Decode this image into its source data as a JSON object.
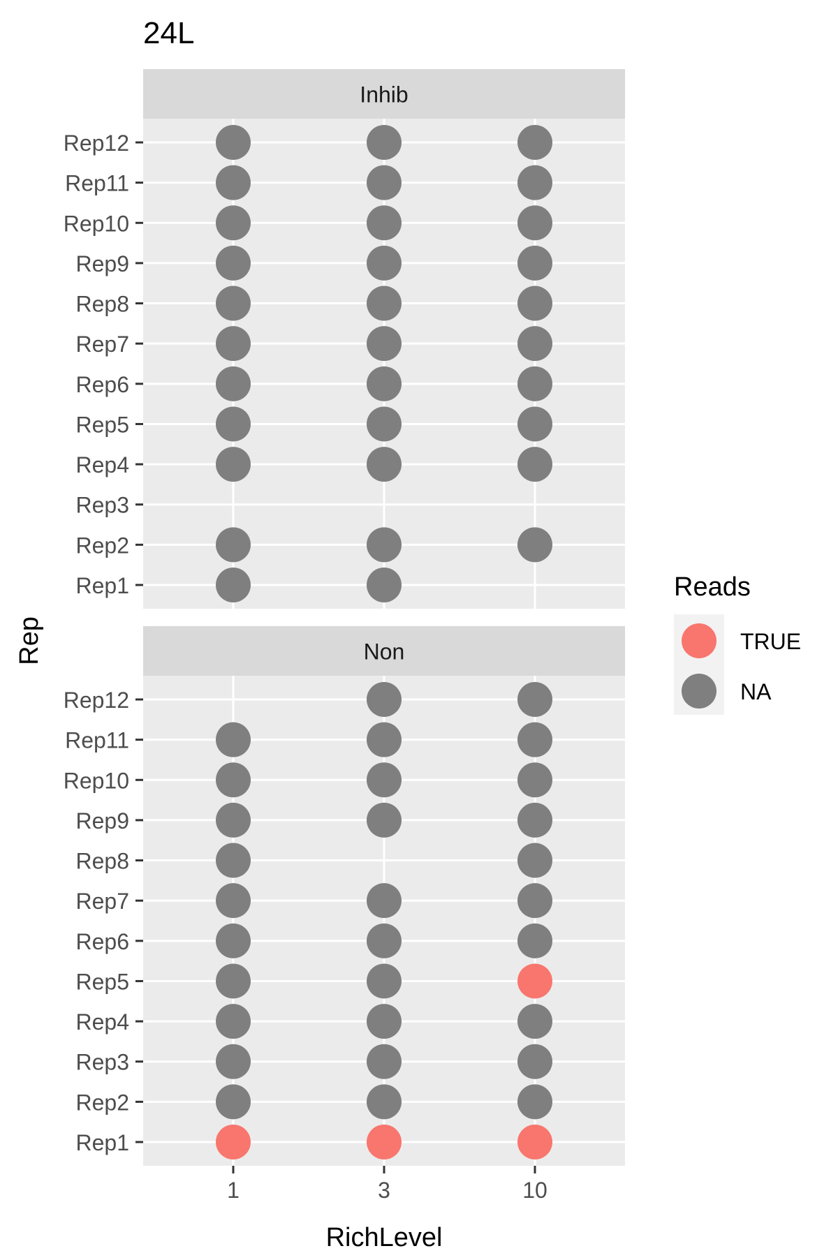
{
  "chart_data": {
    "type": "scatter",
    "title": "24L",
    "xlabel": "RichLevel",
    "ylabel": "Rep",
    "x_categories": [
      "1",
      "3",
      "10"
    ],
    "y_categories": [
      "Rep1",
      "Rep2",
      "Rep3",
      "Rep4",
      "Rep5",
      "Rep6",
      "Rep7",
      "Rep8",
      "Rep9",
      "Rep10",
      "Rep11",
      "Rep12"
    ],
    "grid": true,
    "legend": {
      "title": "Reads",
      "position": "right",
      "entries": [
        {
          "label": "TRUE",
          "color": "#F8766D"
        },
        {
          "label": "NA",
          "color": "#7F7F7F"
        }
      ]
    },
    "colors": {
      "TRUE": "#F8766D",
      "NA": "#7F7F7F"
    },
    "facets": [
      {
        "name": "Inhib",
        "points": [
          {
            "x": "1",
            "y": "Rep12",
            "reads": "NA"
          },
          {
            "x": "3",
            "y": "Rep12",
            "reads": "NA"
          },
          {
            "x": "10",
            "y": "Rep12",
            "reads": "NA"
          },
          {
            "x": "1",
            "y": "Rep11",
            "reads": "NA"
          },
          {
            "x": "3",
            "y": "Rep11",
            "reads": "NA"
          },
          {
            "x": "10",
            "y": "Rep11",
            "reads": "NA"
          },
          {
            "x": "1",
            "y": "Rep10",
            "reads": "NA"
          },
          {
            "x": "3",
            "y": "Rep10",
            "reads": "NA"
          },
          {
            "x": "10",
            "y": "Rep10",
            "reads": "NA"
          },
          {
            "x": "1",
            "y": "Rep9",
            "reads": "NA"
          },
          {
            "x": "3",
            "y": "Rep9",
            "reads": "NA"
          },
          {
            "x": "10",
            "y": "Rep9",
            "reads": "NA"
          },
          {
            "x": "1",
            "y": "Rep8",
            "reads": "NA"
          },
          {
            "x": "3",
            "y": "Rep8",
            "reads": "NA"
          },
          {
            "x": "10",
            "y": "Rep8",
            "reads": "NA"
          },
          {
            "x": "1",
            "y": "Rep7",
            "reads": "NA"
          },
          {
            "x": "3",
            "y": "Rep7",
            "reads": "NA"
          },
          {
            "x": "10",
            "y": "Rep7",
            "reads": "NA"
          },
          {
            "x": "1",
            "y": "Rep6",
            "reads": "NA"
          },
          {
            "x": "3",
            "y": "Rep6",
            "reads": "NA"
          },
          {
            "x": "10",
            "y": "Rep6",
            "reads": "NA"
          },
          {
            "x": "1",
            "y": "Rep5",
            "reads": "NA"
          },
          {
            "x": "3",
            "y": "Rep5",
            "reads": "NA"
          },
          {
            "x": "10",
            "y": "Rep5",
            "reads": "NA"
          },
          {
            "x": "1",
            "y": "Rep4",
            "reads": "NA"
          },
          {
            "x": "3",
            "y": "Rep4",
            "reads": "NA"
          },
          {
            "x": "10",
            "y": "Rep4",
            "reads": "NA"
          },
          {
            "x": "1",
            "y": "Rep2",
            "reads": "NA"
          },
          {
            "x": "3",
            "y": "Rep2",
            "reads": "NA"
          },
          {
            "x": "10",
            "y": "Rep2",
            "reads": "NA"
          },
          {
            "x": "1",
            "y": "Rep1",
            "reads": "NA"
          },
          {
            "x": "3",
            "y": "Rep1",
            "reads": "NA"
          }
        ]
      },
      {
        "name": "Non",
        "points": [
          {
            "x": "3",
            "y": "Rep12",
            "reads": "NA"
          },
          {
            "x": "10",
            "y": "Rep12",
            "reads": "NA"
          },
          {
            "x": "1",
            "y": "Rep11",
            "reads": "NA"
          },
          {
            "x": "3",
            "y": "Rep11",
            "reads": "NA"
          },
          {
            "x": "10",
            "y": "Rep11",
            "reads": "NA"
          },
          {
            "x": "1",
            "y": "Rep10",
            "reads": "NA"
          },
          {
            "x": "3",
            "y": "Rep10",
            "reads": "NA"
          },
          {
            "x": "10",
            "y": "Rep10",
            "reads": "NA"
          },
          {
            "x": "1",
            "y": "Rep9",
            "reads": "NA"
          },
          {
            "x": "3",
            "y": "Rep9",
            "reads": "NA"
          },
          {
            "x": "10",
            "y": "Rep9",
            "reads": "NA"
          },
          {
            "x": "1",
            "y": "Rep8",
            "reads": "NA"
          },
          {
            "x": "10",
            "y": "Rep8",
            "reads": "NA"
          },
          {
            "x": "1",
            "y": "Rep7",
            "reads": "NA"
          },
          {
            "x": "3",
            "y": "Rep7",
            "reads": "NA"
          },
          {
            "x": "10",
            "y": "Rep7",
            "reads": "NA"
          },
          {
            "x": "1",
            "y": "Rep6",
            "reads": "NA"
          },
          {
            "x": "3",
            "y": "Rep6",
            "reads": "NA"
          },
          {
            "x": "10",
            "y": "Rep6",
            "reads": "NA"
          },
          {
            "x": "1",
            "y": "Rep5",
            "reads": "NA"
          },
          {
            "x": "3",
            "y": "Rep5",
            "reads": "NA"
          },
          {
            "x": "10",
            "y": "Rep5",
            "reads": "TRUE"
          },
          {
            "x": "1",
            "y": "Rep4",
            "reads": "NA"
          },
          {
            "x": "3",
            "y": "Rep4",
            "reads": "NA"
          },
          {
            "x": "10",
            "y": "Rep4",
            "reads": "NA"
          },
          {
            "x": "1",
            "y": "Rep3",
            "reads": "NA"
          },
          {
            "x": "3",
            "y": "Rep3",
            "reads": "NA"
          },
          {
            "x": "10",
            "y": "Rep3",
            "reads": "NA"
          },
          {
            "x": "1",
            "y": "Rep2",
            "reads": "NA"
          },
          {
            "x": "3",
            "y": "Rep2",
            "reads": "NA"
          },
          {
            "x": "10",
            "y": "Rep2",
            "reads": "NA"
          },
          {
            "x": "1",
            "y": "Rep1",
            "reads": "TRUE"
          },
          {
            "x": "3",
            "y": "Rep1",
            "reads": "TRUE"
          },
          {
            "x": "10",
            "y": "Rep1",
            "reads": "TRUE"
          }
        ]
      }
    ]
  }
}
